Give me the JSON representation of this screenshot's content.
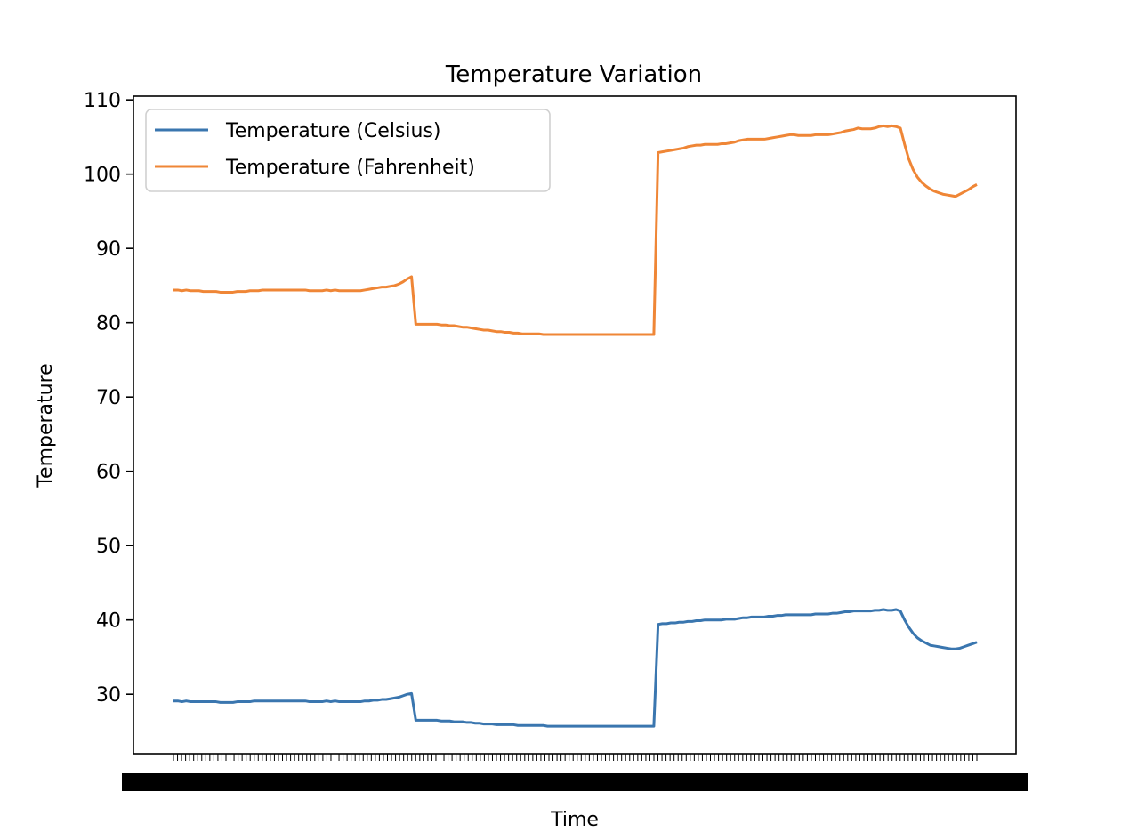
{
  "chart_data": {
    "type": "line",
    "title": "Temperature Variation",
    "xlabel": "Time",
    "ylabel": "Temperature",
    "ylim": [
      22,
      110.5
    ],
    "yticks": [
      30,
      40,
      50,
      60,
      70,
      80,
      90,
      100,
      110
    ],
    "grid": false,
    "legend_position": "top-left",
    "x_tick_count": 200,
    "series": [
      {
        "name": "Temperature (Celsius)",
        "color": "#3a76af",
        "values": [
          29.1,
          29.1,
          29.0,
          29.1,
          29.0,
          29.0,
          29.0,
          29.0,
          29.0,
          29.0,
          29.0,
          28.9,
          28.9,
          28.9,
          28.9,
          29.0,
          29.0,
          29.0,
          29.0,
          29.1,
          29.1,
          29.1,
          29.1,
          29.1,
          29.1,
          29.1,
          29.1,
          29.1,
          29.1,
          29.1,
          29.1,
          29.1,
          29.0,
          29.0,
          29.0,
          29.0,
          29.1,
          29.0,
          29.1,
          29.0,
          29.0,
          29.0,
          29.0,
          29.0,
          29.0,
          29.1,
          29.1,
          29.2,
          29.2,
          29.3,
          29.3,
          29.4,
          29.5,
          29.6,
          29.8,
          30.0,
          30.1,
          26.5,
          26.5,
          26.5,
          26.5,
          26.5,
          26.5,
          26.4,
          26.4,
          26.4,
          26.3,
          26.3,
          26.3,
          26.2,
          26.2,
          26.1,
          26.1,
          26.0,
          26.0,
          26.0,
          25.9,
          25.9,
          25.9,
          25.9,
          25.9,
          25.8,
          25.8,
          25.8,
          25.8,
          25.8,
          25.8,
          25.8,
          25.7,
          25.7,
          25.7,
          25.7,
          25.7,
          25.7,
          25.7,
          25.7,
          25.7,
          25.7,
          25.7,
          25.7,
          25.7,
          25.7,
          25.7,
          25.7,
          25.7,
          25.7,
          25.7,
          25.7,
          25.7,
          25.7,
          25.7,
          25.7,
          25.7,
          25.7,
          39.4,
          39.5,
          39.5,
          39.6,
          39.6,
          39.7,
          39.7,
          39.8,
          39.8,
          39.9,
          39.9,
          40.0,
          40.0,
          40.0,
          40.0,
          40.0,
          40.1,
          40.1,
          40.1,
          40.2,
          40.3,
          40.3,
          40.4,
          40.4,
          40.4,
          40.4,
          40.5,
          40.5,
          40.6,
          40.6,
          40.7,
          40.7,
          40.7,
          40.7,
          40.7,
          40.7,
          40.7,
          40.8,
          40.8,
          40.8,
          40.8,
          40.9,
          40.9,
          41.0,
          41.1,
          41.1,
          41.2,
          41.2,
          41.2,
          41.2,
          41.2,
          41.3,
          41.3,
          41.4,
          41.3,
          41.3,
          41.4,
          41.2,
          40.0,
          39.0,
          38.2,
          37.6,
          37.2,
          36.9,
          36.6,
          36.5,
          36.4,
          36.3,
          36.2,
          36.1,
          36.1,
          36.2,
          36.4,
          36.6,
          36.8,
          37.0
        ]
      },
      {
        "name": "Temperature (Fahrenheit)",
        "color": "#ef8636",
        "values": [
          84.4,
          84.4,
          84.3,
          84.4,
          84.3,
          84.3,
          84.3,
          84.2,
          84.2,
          84.2,
          84.2,
          84.1,
          84.1,
          84.1,
          84.1,
          84.2,
          84.2,
          84.2,
          84.3,
          84.3,
          84.3,
          84.4,
          84.4,
          84.4,
          84.4,
          84.4,
          84.4,
          84.4,
          84.4,
          84.4,
          84.4,
          84.4,
          84.3,
          84.3,
          84.3,
          84.3,
          84.4,
          84.3,
          84.4,
          84.3,
          84.3,
          84.3,
          84.3,
          84.3,
          84.3,
          84.4,
          84.5,
          84.6,
          84.7,
          84.8,
          84.8,
          84.9,
          85.0,
          85.2,
          85.5,
          85.9,
          86.2,
          79.8,
          79.8,
          79.8,
          79.8,
          79.8,
          79.8,
          79.7,
          79.7,
          79.6,
          79.6,
          79.5,
          79.4,
          79.4,
          79.3,
          79.2,
          79.1,
          79.0,
          79.0,
          78.9,
          78.8,
          78.8,
          78.7,
          78.7,
          78.6,
          78.6,
          78.5,
          78.5,
          78.5,
          78.5,
          78.5,
          78.4,
          78.4,
          78.4,
          78.4,
          78.4,
          78.4,
          78.4,
          78.4,
          78.4,
          78.4,
          78.4,
          78.4,
          78.4,
          78.4,
          78.4,
          78.4,
          78.4,
          78.4,
          78.4,
          78.4,
          78.4,
          78.4,
          78.4,
          78.4,
          78.4,
          78.4,
          78.4,
          102.9,
          103.0,
          103.1,
          103.2,
          103.3,
          103.4,
          103.5,
          103.7,
          103.8,
          103.9,
          103.9,
          104.0,
          104.0,
          104.0,
          104.0,
          104.1,
          104.1,
          104.2,
          104.3,
          104.5,
          104.6,
          104.7,
          104.7,
          104.7,
          104.7,
          104.7,
          104.8,
          104.9,
          105.0,
          105.1,
          105.2,
          105.3,
          105.3,
          105.2,
          105.2,
          105.2,
          105.2,
          105.3,
          105.3,
          105.3,
          105.3,
          105.4,
          105.5,
          105.6,
          105.8,
          105.9,
          106.0,
          106.2,
          106.1,
          106.1,
          106.1,
          106.2,
          106.4,
          106.5,
          106.4,
          106.5,
          106.4,
          106.2,
          104.0,
          102.0,
          100.6,
          99.6,
          98.9,
          98.4,
          98.0,
          97.7,
          97.5,
          97.3,
          97.2,
          97.1,
          97.0,
          97.3,
          97.6,
          97.9,
          98.3,
          98.6
        ]
      }
    ]
  }
}
